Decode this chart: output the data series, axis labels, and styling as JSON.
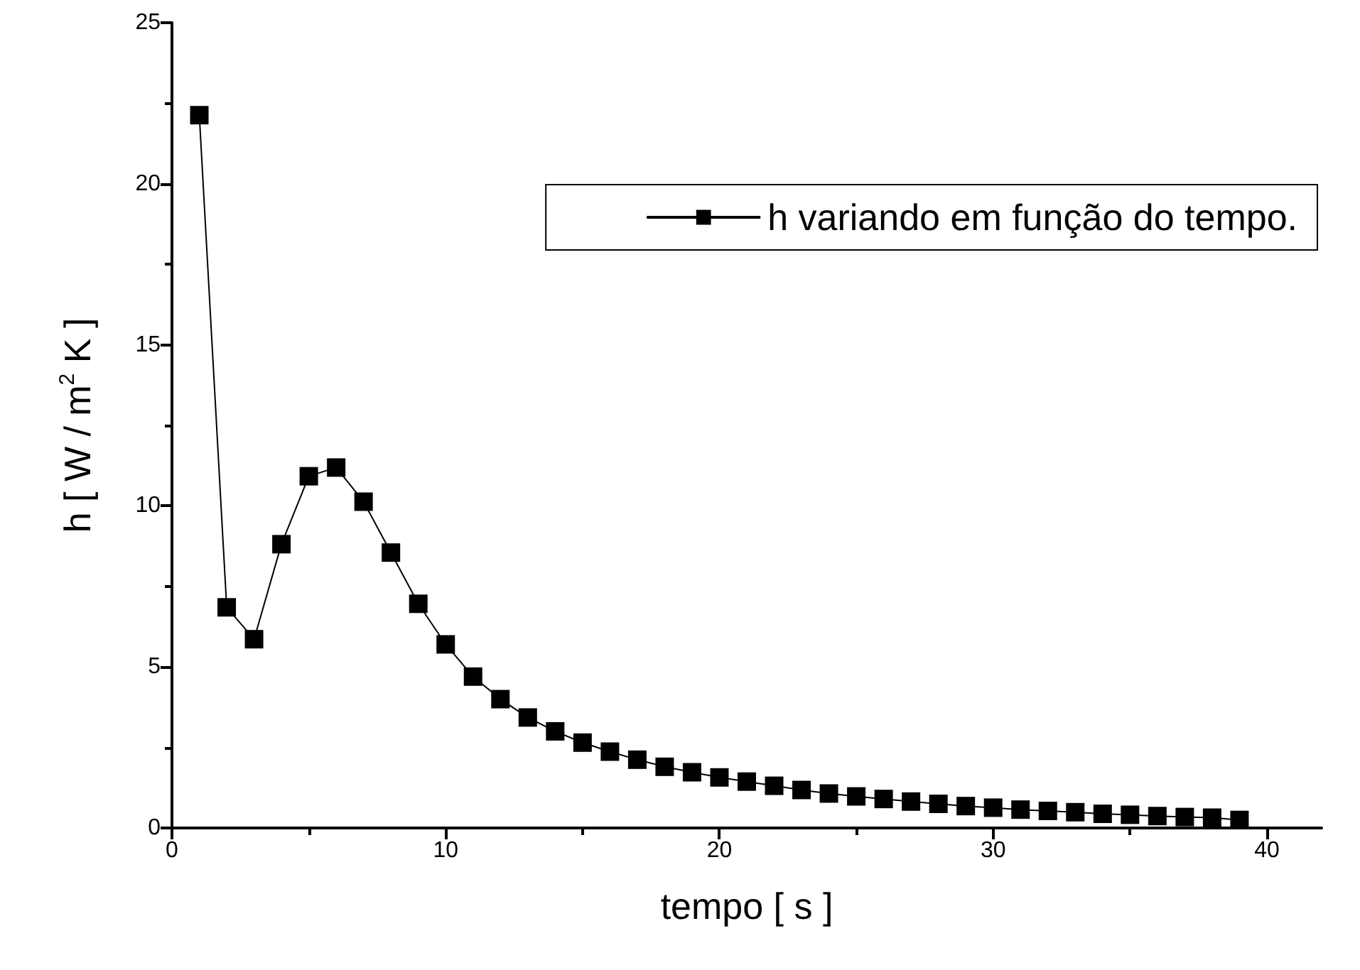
{
  "chart_data": {
    "type": "line",
    "xlabel": "tempo [ s ]",
    "ylabel": "h [ W / m$^{2}$ K ]",
    "x": [
      1,
      2,
      3,
      4,
      5,
      6,
      7,
      8,
      9,
      10,
      11,
      12,
      13,
      14,
      15,
      16,
      17,
      18,
      19,
      20,
      21,
      22,
      23,
      24,
      25,
      26,
      27,
      28,
      29,
      30,
      31,
      32,
      33,
      34,
      35,
      36,
      37,
      38,
      39
    ],
    "series": [
      {
        "name": "h variando em função do tempo.",
        "color": "#000000",
        "values": [
          22.13,
          6.85,
          5.86,
          8.81,
          10.92,
          11.19,
          10.13,
          8.55,
          6.96,
          5.7,
          4.7,
          4.0,
          3.43,
          3.0,
          2.65,
          2.37,
          2.12,
          1.9,
          1.73,
          1.57,
          1.44,
          1.31,
          1.18,
          1.07,
          0.98,
          0.9,
          0.82,
          0.75,
          0.68,
          0.63,
          0.57,
          0.53,
          0.49,
          0.44,
          0.41,
          0.37,
          0.34,
          0.32,
          0.25
        ]
      }
    ],
    "xlim": [
      0,
      42
    ],
    "xticks": [
      0,
      10,
      20,
      30,
      40
    ],
    "ylim": [
      0,
      25
    ],
    "yticks": [
      0,
      5,
      10,
      15,
      20,
      25
    ],
    "grid": false,
    "legend": "top right",
    "marker": "square",
    "line_style": "solid"
  }
}
